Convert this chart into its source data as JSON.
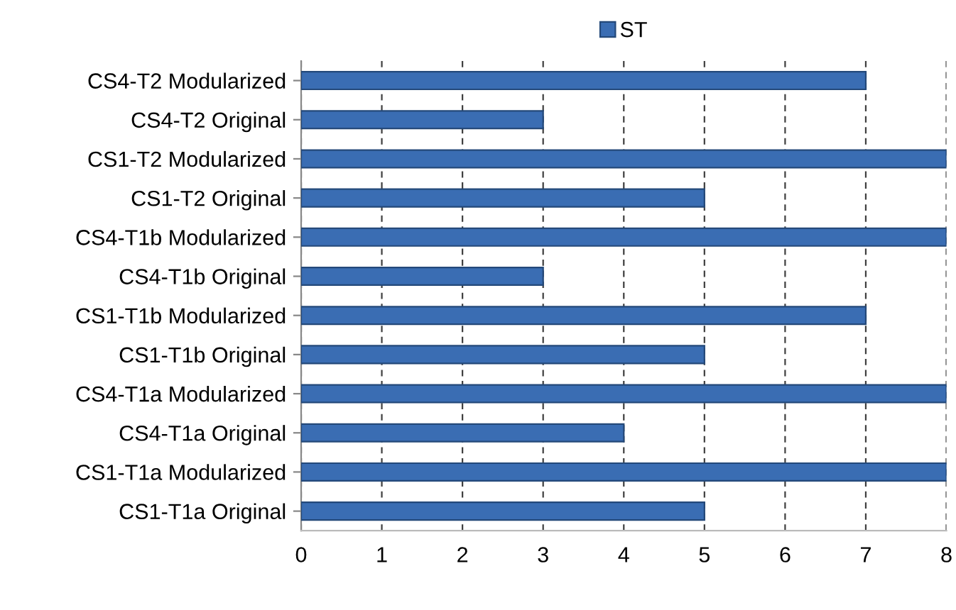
{
  "chart_data": {
    "type": "bar",
    "orientation": "horizontal",
    "categories": [
      "CS4-T2 Modularized",
      "CS4-T2 Original",
      "CS1-T2 Modularized",
      "CS1-T2 Original",
      "CS4-T1b Modularized",
      "CS4-T1b Original",
      "CS1-T1b Modularized",
      "CS1-T1b Original",
      "CS4-T1a Modularized",
      "CS4-T1a Original",
      "CS1-T1a Modularized",
      "CS1-T1a Original"
    ],
    "series": [
      {
        "name": "ST",
        "color": "#3a6db3",
        "values": [
          7,
          3,
          8,
          5,
          8,
          3,
          7,
          5,
          8,
          4,
          8,
          5
        ]
      }
    ],
    "xlim": [
      0,
      8
    ],
    "xticks": [
      0,
      1,
      2,
      3,
      4,
      5,
      6,
      7,
      8
    ],
    "grid": "x",
    "legend": "top"
  }
}
